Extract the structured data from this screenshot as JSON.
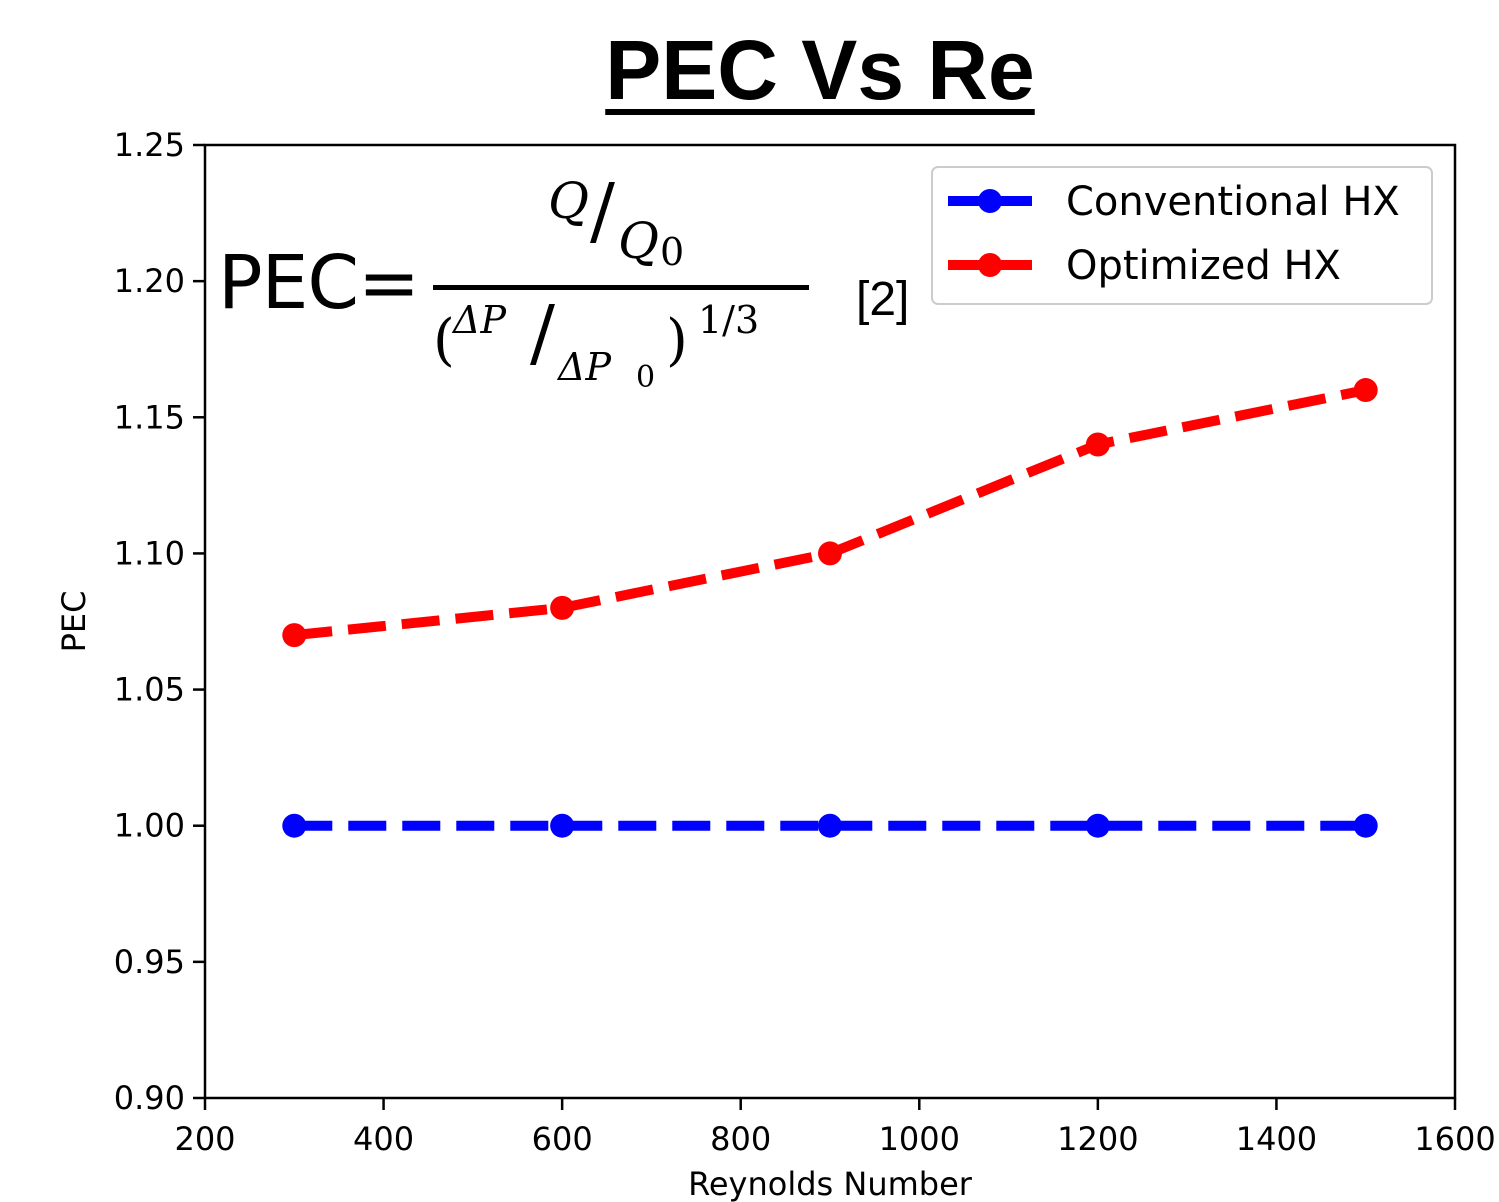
{
  "chart_data": {
    "type": "line",
    "title": "PEC Vs Re",
    "xlabel": "Reynolds Number",
    "ylabel": "PEC",
    "xlim": [
      200,
      1600
    ],
    "ylim": [
      0.9,
      1.25
    ],
    "xticks": [
      200,
      400,
      600,
      800,
      1000,
      1200,
      1400,
      1600
    ],
    "yticks": [
      0.9,
      0.95,
      1.0,
      1.05,
      1.1,
      1.15,
      1.2,
      1.25
    ],
    "x": [
      300,
      600,
      900,
      1200,
      1500
    ],
    "series": [
      {
        "name": "Conventional HX",
        "color": "#0000ff",
        "values": [
          1.0,
          1.0,
          1.0,
          1.0,
          1.0
        ]
      },
      {
        "name": "Optimized HX",
        "color": "#ff0000",
        "values": [
          1.07,
          1.08,
          1.1,
          1.14,
          1.16
        ]
      }
    ],
    "legend_position": "top-right",
    "grid": false
  },
  "annotation": {
    "pec_label": "PEC=",
    "numerator_q": "Q",
    "numerator_q0": "Q",
    "numerator_sub": "0",
    "denominator_open": "(",
    "denominator_dp": "ΔP",
    "denominator_dp0": "ΔP",
    "denominator_sub": "0",
    "denominator_close": ")",
    "denominator_exp": "1/3",
    "slash": "/",
    "reference": "[2]"
  }
}
